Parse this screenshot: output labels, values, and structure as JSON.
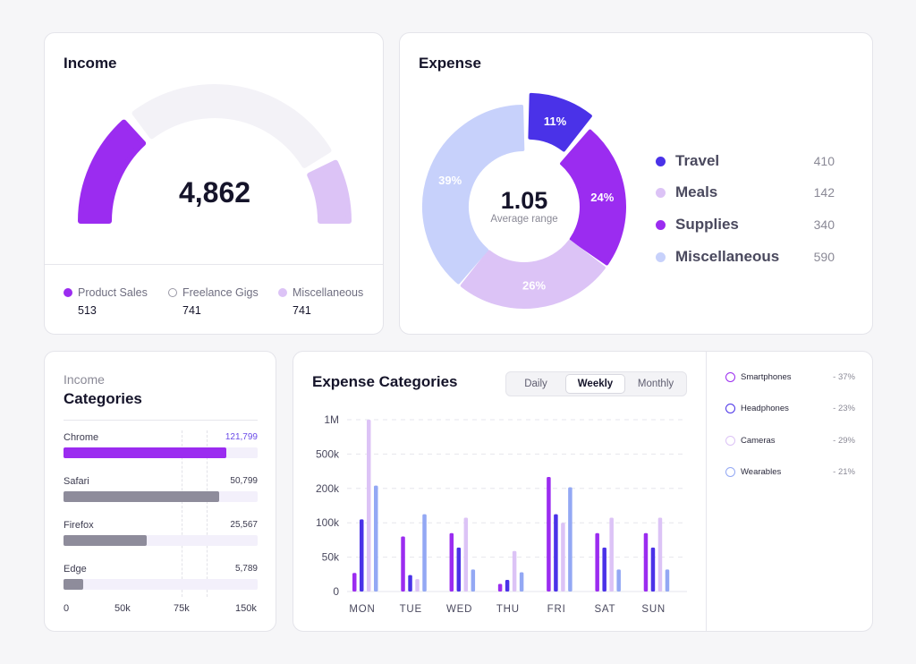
{
  "income": {
    "title": "Income",
    "value": "4,862",
    "gauge": {
      "segments": [
        {
          "name": "Product Sales",
          "fraction": 0.28,
          "color": "#9b2cf0"
        },
        {
          "name": "Freelance Gigs",
          "fraction": 0.56,
          "color": "#f3f2f7"
        },
        {
          "name": "Miscellaneous",
          "fraction": 0.16,
          "color": "#dcc3f6"
        }
      ]
    },
    "legend": [
      {
        "label": "Product Sales",
        "value": "513",
        "color": "#9b2cf0",
        "style": "filled"
      },
      {
        "label": "Freelance Gigs",
        "value": "741",
        "color": "#9a99a6",
        "style": "ring"
      },
      {
        "label": "Miscellaneous",
        "value": "741",
        "color": "#dcc3f6",
        "style": "filled"
      }
    ]
  },
  "expense": {
    "title": "Expense",
    "center_value": "1.05",
    "center_label": "Average range",
    "legend": [
      {
        "label": "Travel",
        "value": "410",
        "color": "#4a32e8"
      },
      {
        "label": "Meals",
        "value": "142",
        "color": "#dcc3f6"
      },
      {
        "label": "Supplies",
        "value": "340",
        "color": "#9b2cf0"
      },
      {
        "label": "Miscellaneous",
        "value": "590",
        "color": "#c7d1fb"
      }
    ]
  },
  "income_categories": {
    "kicker": "Income",
    "title": "Categories",
    "axis_ticks": [
      "0",
      "50k",
      "75k",
      "150k"
    ],
    "rows": [
      {
        "name": "Chrome",
        "value_label": "121,799",
        "value": 121799,
        "color": "#9b2cf0",
        "value_color": "#6a4be8"
      },
      {
        "name": "Safari",
        "value_label": "50,799",
        "value": 50799,
        "color": "#8e8c9b",
        "value_color": "#3b3a4e"
      },
      {
        "name": "Firefox",
        "value_label": "25,567",
        "value": 25567,
        "color": "#8e8c9b",
        "value_color": "#3b3a4e"
      },
      {
        "name": "Edge",
        "value_label": "5,789",
        "value": 5789,
        "color": "#8e8c9b",
        "value_color": "#3b3a4e"
      }
    ]
  },
  "expense_categories": {
    "title": "Expense Categories",
    "tabs": [
      {
        "label": "Daily",
        "active": false
      },
      {
        "label": "Weekly",
        "active": true
      },
      {
        "label": "Monthly",
        "active": false
      }
    ],
    "legend": [
      {
        "label": "Smartphones",
        "value": "- 37%",
        "color": "#9b2cf0"
      },
      {
        "label": "Headphones",
        "value": "- 23%",
        "color": "#4a32e8"
      },
      {
        "label": "Cameras",
        "value": "- 29%",
        "color": "#dcc3f6"
      },
      {
        "label": "Wearables",
        "value": "- 21%",
        "color": "#93a8f4"
      }
    ]
  },
  "chart_data": [
    {
      "type": "pie",
      "title": "Expense",
      "categories": [
        "Travel",
        "Supplies",
        "Meals",
        "Miscellaneous"
      ],
      "values": [
        11,
        24,
        26,
        39
      ],
      "labels": [
        "11%",
        "24%",
        "26%",
        "39%"
      ],
      "colors": [
        "#4a32e8",
        "#9b2cf0",
        "#dcc3f6",
        "#c7d1fb"
      ]
    },
    {
      "type": "bar",
      "title": "Expense Categories",
      "categories": [
        "MON",
        "TUE",
        "WED",
        "THU",
        "FRI",
        "SAT",
        "SUN"
      ],
      "y_ticks": [
        "0",
        "50k",
        "100k",
        "200k",
        "500k",
        "1M"
      ],
      "y_tick_values": [
        0,
        50000,
        100000,
        200000,
        500000,
        1000000
      ],
      "series": [
        {
          "name": "Smartphones",
          "color": "#9b2cf0",
          "values": [
            27000,
            80000,
            85000,
            11000,
            300000,
            85000,
            85000
          ]
        },
        {
          "name": "Headphones",
          "color": "#4a32e8",
          "values": [
            110000,
            24000,
            64000,
            17000,
            125000,
            64000,
            64000
          ]
        },
        {
          "name": "Cameras",
          "color": "#dcc3f6",
          "values": [
            1000000,
            18000,
            115000,
            59000,
            100000,
            115000,
            115000
          ]
        },
        {
          "name": "Wearables",
          "color": "#93a8f4",
          "values": [
            225000,
            125000,
            32000,
            28000,
            210000,
            32000,
            32000
          ]
        }
      ],
      "grid": true
    }
  ]
}
